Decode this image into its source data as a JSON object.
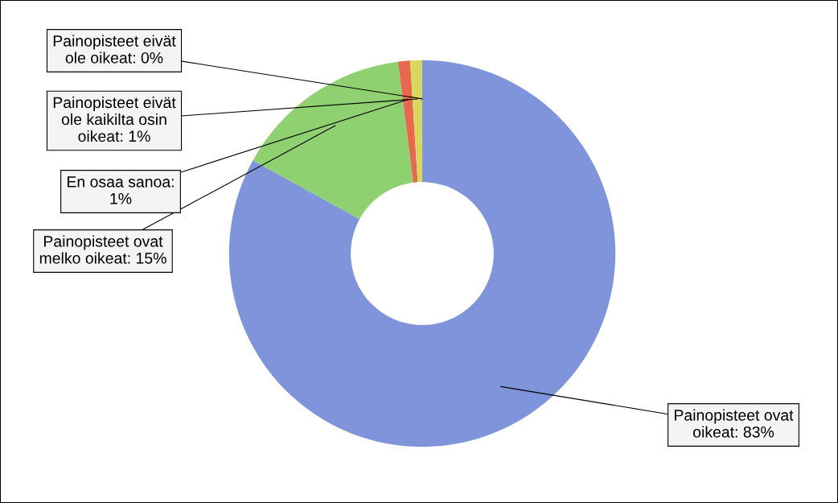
{
  "chart_data": {
    "type": "donut",
    "categories": [
      "Painopisteet ovat oikeat: 83%",
      "Painopisteet ovat melko oikeat: 15%",
      "En osaa sanoa: 1%",
      "Painopisteet eivät ole kaikilta osin oikeat: 1%",
      "Painopisteet eivät ole oikeat: 0%"
    ],
    "values": [
      83,
      15,
      1,
      1,
      0
    ],
    "colors": [
      "#8094dc",
      "#8fd070",
      "#e8684f",
      "#d8d860",
      "#d86090"
    ],
    "legend": false
  }
}
